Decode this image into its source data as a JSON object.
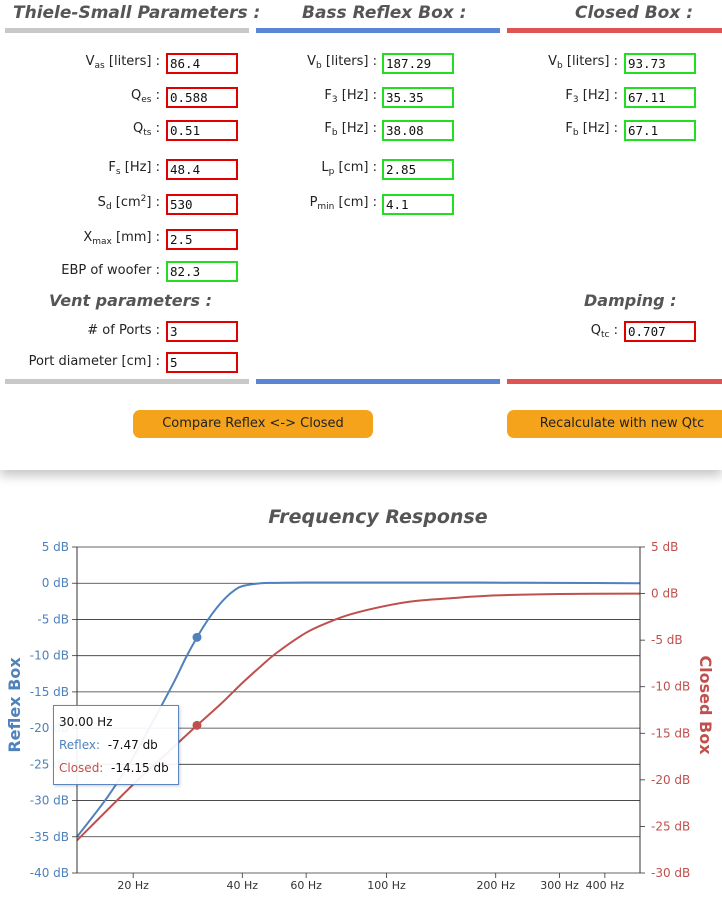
{
  "sections": {
    "thiele": {
      "title": "Thiele-Small Parameters :"
    },
    "reflex": {
      "title": "Bass Reflex Box :"
    },
    "closed": {
      "title": "Closed Box :"
    },
    "vent": {
      "title": "Vent parameters :"
    },
    "damping": {
      "title": "Damping :"
    }
  },
  "thiele": {
    "vas": {
      "label_main": "V",
      "label_sub": "as",
      "label_rest": " [liters] :",
      "value": "86.4"
    },
    "qes": {
      "label_main": "Q",
      "label_sub": "es",
      "label_rest": " :",
      "value": "0.588"
    },
    "qts": {
      "label_main": "Q",
      "label_sub": "ts",
      "label_rest": " :",
      "value": "0.51"
    },
    "fs": {
      "label_main": "F",
      "label_sub": "s",
      "label_rest": " [Hz] :",
      "value": "48.4"
    },
    "sd": {
      "label_main": "S",
      "label_sub": "d",
      "label_mid": " [cm",
      "label_sup": "2",
      "label_rest": "] :",
      "value": "530"
    },
    "xmax": {
      "label_main": "X",
      "label_sub": "max",
      "label_rest": " [mm] :",
      "value": "2.5"
    },
    "ebp": {
      "label": "EBP of woofer :",
      "value": "82.3"
    }
  },
  "vent": {
    "ports": {
      "label": "# of Ports :",
      "value": "3"
    },
    "diameter": {
      "label": "Port diameter [cm] :",
      "value": "5"
    }
  },
  "reflex": {
    "vb": {
      "label_main": "V",
      "label_sub": "b",
      "label_rest": " [liters] :",
      "value": "187.29"
    },
    "f3": {
      "label_main": "F",
      "label_sub": "3",
      "label_rest": " [Hz] :",
      "value": "35.35"
    },
    "fb": {
      "label_main": "F",
      "label_sub": "b",
      "label_rest": " [Hz] :",
      "value": "38.08"
    },
    "lp": {
      "label_main": "L",
      "label_sub": "p",
      "label_rest": " [cm] :",
      "value": "2.85"
    },
    "pmin": {
      "label_main": "P",
      "label_sub": "min",
      "label_rest": " [cm] :",
      "value": "4.1"
    }
  },
  "closed": {
    "vb": {
      "label_main": "V",
      "label_sub": "b",
      "label_rest": " [liters] :",
      "value": "93.73"
    },
    "f3": {
      "label_main": "F",
      "label_sub": "3",
      "label_rest": " [Hz] :",
      "value": "67.11"
    },
    "fb": {
      "label_main": "F",
      "label_sub": "b",
      "label_rest": " [Hz] :",
      "value": "67.1"
    }
  },
  "damping": {
    "qtc": {
      "label_main": "Q",
      "label_sub": "tc",
      "label_rest": " :",
      "value": "0.707"
    }
  },
  "buttons": {
    "compare": "Compare Reflex <-> Closed",
    "recalculate": "Recalculate with new Qtc"
  },
  "colors": {
    "reflex": "#4f81bd",
    "closed": "#c0504d",
    "button": "#f5a31a",
    "input_editable_border": "#e00000",
    "input_result_border": "#22dd22"
  },
  "tooltip": {
    "freq": "30.00 Hz",
    "reflex_label": "Reflex:",
    "reflex_value": "-7.47 db",
    "closed_label": "Closed:",
    "closed_value": "-14.15 db"
  },
  "chart_data": {
    "type": "line",
    "title": "Frequency Response",
    "x_scale": "log",
    "xlim": [
      14,
      500
    ],
    "x_ticks": [
      20,
      40,
      60,
      100,
      200,
      300,
      400
    ],
    "x_tick_labels": [
      "20 Hz",
      "40 Hz",
      "60 Hz",
      "100 Hz",
      "200 Hz",
      "300 Hz",
      "400 Hz"
    ],
    "grid": true,
    "y_left": {
      "label": "Reflex Box",
      "range": [
        -40,
        5
      ],
      "ticks": [
        5,
        0,
        -5,
        -10,
        -15,
        -20,
        -25,
        -30,
        -35,
        -40
      ],
      "tick_labels": [
        "5 dB",
        "0 dB",
        "-5 dB",
        "-10 dB",
        "-15 dB",
        "-20 dB",
        "-25 dB",
        "-30 dB",
        "-35 dB",
        "-40 dB"
      ]
    },
    "y_right": {
      "label": "Closed Box",
      "range": [
        -30,
        5
      ],
      "ticks": [
        5,
        0,
        -5,
        -10,
        -15,
        -20,
        -25,
        -30
      ],
      "tick_labels": [
        "5 dB",
        "0 dB",
        "-5 dB",
        "-10 dB",
        "-15 dB",
        "-20 dB",
        "-25 dB",
        "-30 dB"
      ]
    },
    "series": [
      {
        "name": "Reflex",
        "axis": "left",
        "x": [
          14,
          17,
          20,
          23,
          26,
          28,
          30,
          32,
          34,
          36,
          38,
          40,
          45,
          50,
          60,
          80,
          100,
          150,
          200,
          300,
          500
        ],
        "y": [
          -35,
          -29.5,
          -24,
          -18.5,
          -13.5,
          -10.2,
          -7.47,
          -5.2,
          -3.4,
          -2,
          -1,
          -0.4,
          0,
          0.05,
          0.1,
          0.1,
          0.1,
          0.1,
          0.08,
          0.05,
          0
        ]
      },
      {
        "name": "Closed",
        "axis": "right",
        "x": [
          14,
          20,
          25,
          30,
          35,
          40,
          45,
          50,
          60,
          70,
          80,
          100,
          120,
          150,
          200,
          300,
          500
        ],
        "y": [
          -26.5,
          -20.5,
          -17,
          -14.15,
          -11.8,
          -9.6,
          -7.8,
          -6.3,
          -4.2,
          -3,
          -2.2,
          -1.3,
          -0.8,
          -0.5,
          -0.2,
          -0.05,
          0
        ]
      }
    ],
    "highlight_x": 30,
    "highlight_points": [
      {
        "series": "Reflex",
        "x": 30,
        "y": -7.47
      },
      {
        "series": "Closed",
        "x": 30,
        "y": -14.15
      }
    ]
  }
}
